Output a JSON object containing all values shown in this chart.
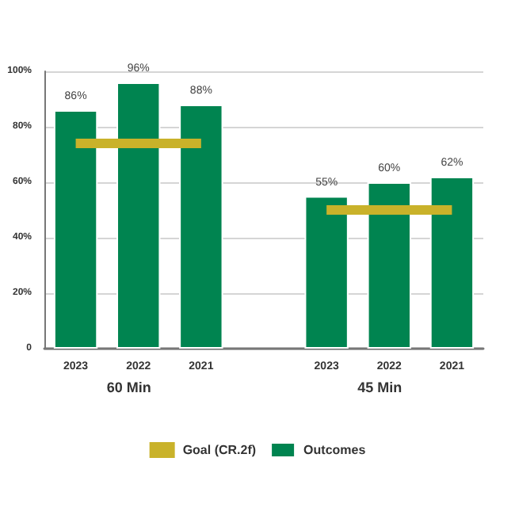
{
  "chart_data": {
    "type": "bar",
    "categories": [
      "2023",
      "2022",
      "2021",
      null,
      "2023",
      "2022",
      "2021"
    ],
    "series": [
      {
        "name": "Goal (CR.2f)",
        "type": "line",
        "color": "#c9b22a",
        "values": [
          74,
          74,
          74,
          null,
          50,
          50,
          50
        ],
        "marker": "none"
      },
      {
        "name": "Outcomes",
        "color": "#008450",
        "values": [
          86,
          96,
          88,
          null,
          55,
          60,
          62
        ],
        "value_labels": [
          "86%",
          "96%",
          "88%",
          null,
          "55%",
          "60%",
          "62%"
        ]
      }
    ],
    "annotations": [
      "60 Min",
      "45 Min"
    ],
    "ylim": [
      0,
      100
    ],
    "yticks": [
      0,
      {
        "value": 20,
        "label": "20%"
      },
      {
        "value": 40,
        "label": "40%"
      },
      {
        "value": 60,
        "label": "60%"
      },
      {
        "value": 80,
        "label": "80%"
      },
      {
        "value": 100,
        "label": "100%"
      }
    ],
    "grid": "y",
    "legend": "bottom"
  }
}
